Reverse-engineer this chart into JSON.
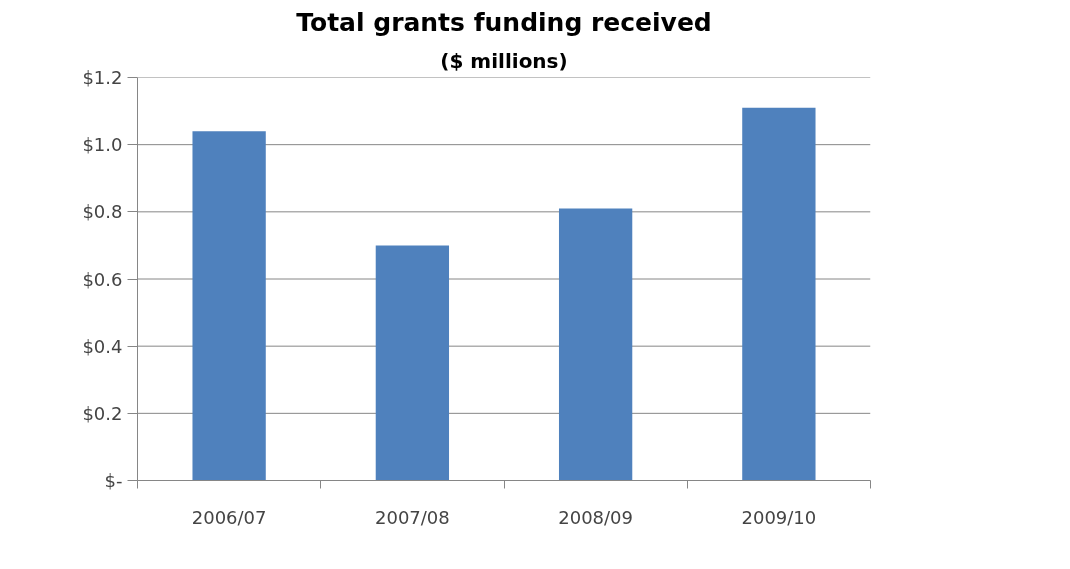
{
  "chart_data": {
    "type": "bar",
    "title": "Total grants funding received",
    "subtitle": "($ millions)",
    "categories": [
      "2006/07",
      "2007/08",
      "2008/09",
      "2009/10"
    ],
    "values": [
      1.04,
      0.7,
      0.81,
      1.11
    ],
    "color": "#4f81bd",
    "ylim": [
      0,
      1.2
    ],
    "yticks": [
      {
        "value": 0,
        "label": "$-"
      },
      {
        "value": 0.2,
        "label": "$0.2"
      },
      {
        "value": 0.4,
        "label": "$0.4"
      },
      {
        "value": 0.6,
        "label": "$0.6"
      },
      {
        "value": 0.8,
        "label": "$0.8"
      },
      {
        "value": 1.0,
        "label": "$1.0"
      },
      {
        "value": 1.2,
        "label": "$1.2"
      }
    ],
    "grid": "y"
  }
}
